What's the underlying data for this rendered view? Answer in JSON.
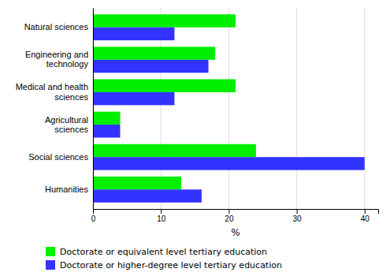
{
  "chart_data": {
    "type": "bar",
    "orientation": "horizontal",
    "categories": [
      "Natural sciences",
      "Engineering and\ntechnology",
      "Medical and health\nsciences",
      "Agricultural\nsciences",
      "Social sciences",
      "Humanities"
    ],
    "series": [
      {
        "name": "Doctorate or equivalent level  tertiary education",
        "color": "#00ee00",
        "values": [
          21,
          18,
          21,
          4,
          24,
          13
        ]
      },
      {
        "name": "Doctorate or higher-degree level tertiary education",
        "color": "#3333ff",
        "values": [
          12,
          17,
          12,
          4,
          40,
          16
        ]
      }
    ],
    "x_label": "%",
    "xlim": [
      0,
      42
    ],
    "xticks": [
      0,
      10,
      20,
      30,
      40
    ],
    "grid": true,
    "legend": "bottom"
  }
}
